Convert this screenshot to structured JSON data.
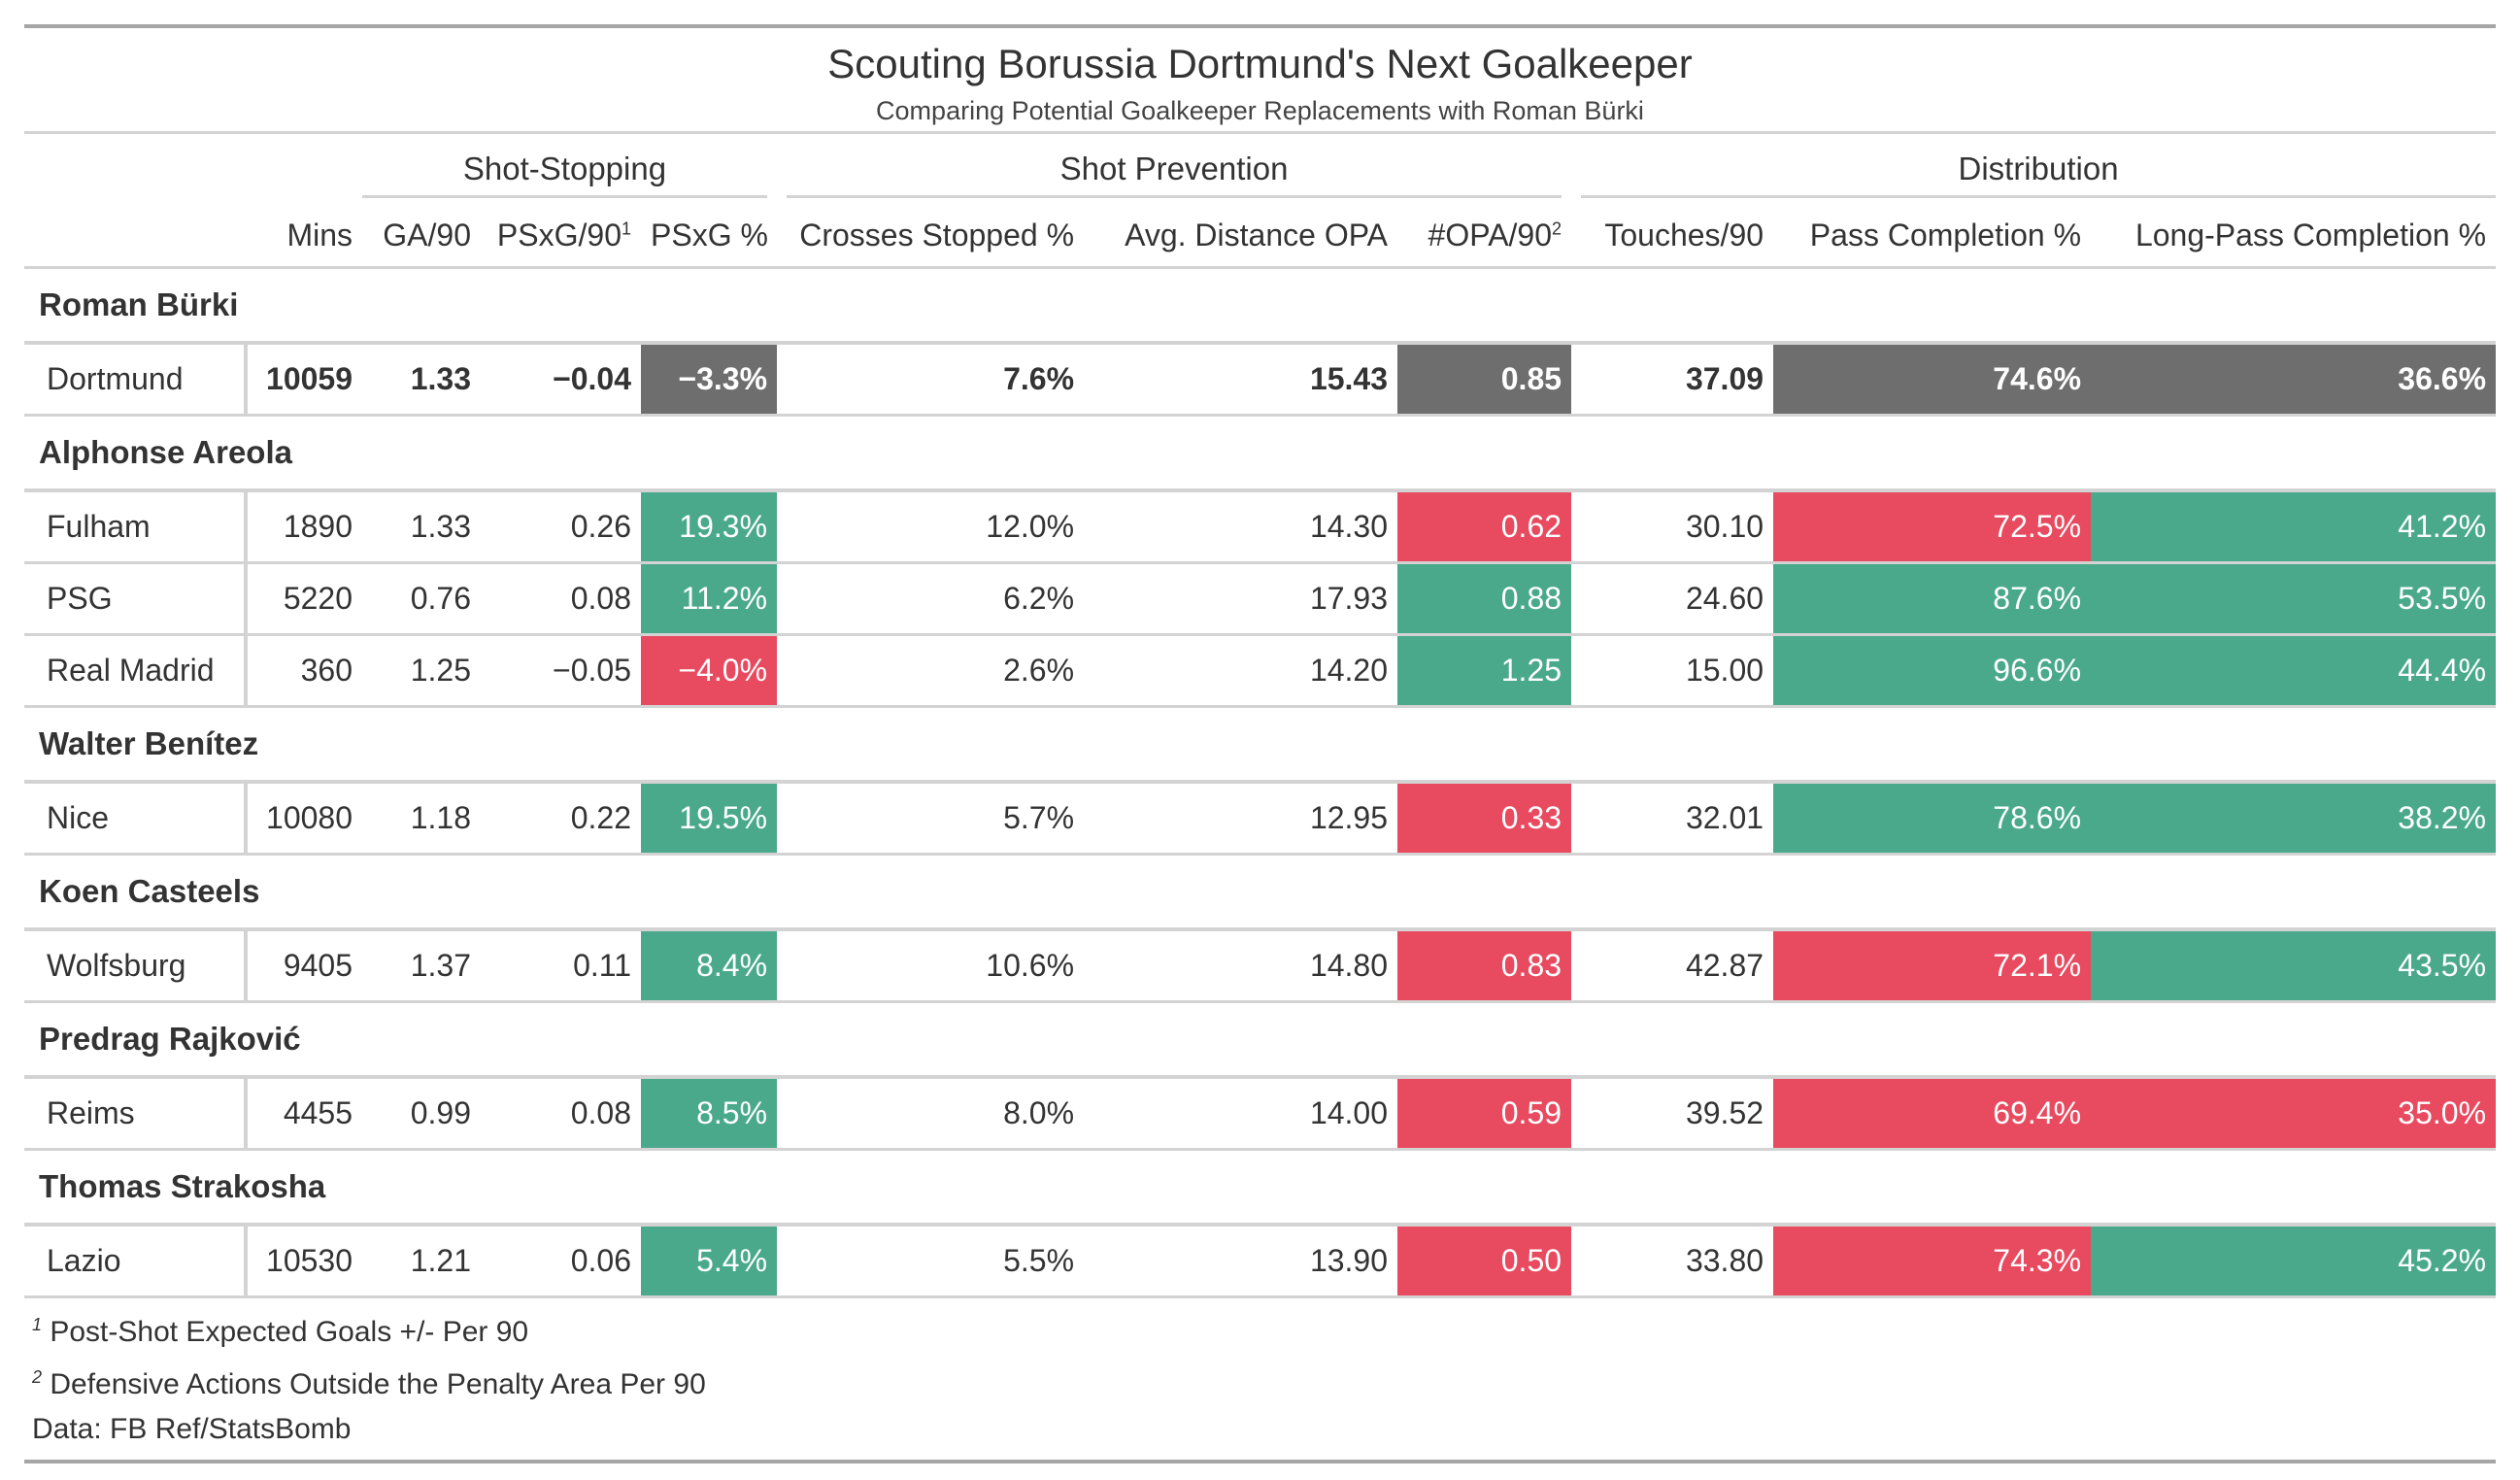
{
  "chart_data": {
    "type": "table",
    "title": "Scouting Borussia Dortmund's Next Goalkeeper",
    "subtitle": "Comparing Potential Goalkeeper Replacements with Roman Bürki",
    "spanners": [
      "Shot-Stopping",
      "Shot Prevention",
      "Distribution"
    ],
    "columns": [
      "Mins",
      "GA/90",
      "PSxG/90",
      "PSxG %",
      "Crosses Stopped %",
      "Avg. Distance OPA",
      "#OPA/90",
      "Touches/90",
      "Pass Completion %",
      "Long-Pass Completion %"
    ],
    "footnote_marks": {
      "PSxG/90": "1",
      "#OPA/90": "2"
    },
    "colors": {
      "better": "#4aa98b",
      "worse": "#e84a5f",
      "reference": "#6e6e6e"
    },
    "groups": [
      {
        "player": "Roman Bürki",
        "rows": [
          {
            "team": "Dortmund",
            "mins": "10059",
            "ga90": "1.33",
            "psxg90": "−0.04",
            "psxg_pct": "−3.3%",
            "crosses": "7.6%",
            "avg_dist": "15.43",
            "opa90": "0.85",
            "touches": "37.09",
            "pass_pct": "74.6%",
            "long_pct": "36.6%"
          }
        ]
      },
      {
        "player": "Alphonse Areola",
        "rows": [
          {
            "team": "Fulham",
            "mins": "1890",
            "ga90": "1.33",
            "psxg90": "0.26",
            "psxg_pct": "19.3%",
            "crosses": "12.0%",
            "avg_dist": "14.30",
            "opa90": "0.62",
            "touches": "30.10",
            "pass_pct": "72.5%",
            "long_pct": "41.2%"
          },
          {
            "team": "PSG",
            "mins": "5220",
            "ga90": "0.76",
            "psxg90": "0.08",
            "psxg_pct": "11.2%",
            "crosses": "6.2%",
            "avg_dist": "17.93",
            "opa90": "0.88",
            "touches": "24.60",
            "pass_pct": "87.6%",
            "long_pct": "53.5%"
          },
          {
            "team": "Real Madrid",
            "mins": "360",
            "ga90": "1.25",
            "psxg90": "−0.05",
            "psxg_pct": "−4.0%",
            "crosses": "2.6%",
            "avg_dist": "14.20",
            "opa90": "1.25",
            "touches": "15.00",
            "pass_pct": "96.6%",
            "long_pct": "44.4%"
          }
        ]
      },
      {
        "player": "Walter Benítez",
        "rows": [
          {
            "team": "Nice",
            "mins": "10080",
            "ga90": "1.18",
            "psxg90": "0.22",
            "psxg_pct": "19.5%",
            "crosses": "5.7%",
            "avg_dist": "12.95",
            "opa90": "0.33",
            "touches": "32.01",
            "pass_pct": "78.6%",
            "long_pct": "38.2%"
          }
        ]
      },
      {
        "player": "Koen Casteels",
        "rows": [
          {
            "team": "Wolfsburg",
            "mins": "9405",
            "ga90": "1.37",
            "psxg90": "0.11",
            "psxg_pct": "8.4%",
            "crosses": "10.6%",
            "avg_dist": "14.80",
            "opa90": "0.83",
            "touches": "42.87",
            "pass_pct": "72.1%",
            "long_pct": "43.5%"
          }
        ]
      },
      {
        "player": "Predrag Rajković",
        "rows": [
          {
            "team": "Reims",
            "mins": "4455",
            "ga90": "0.99",
            "psxg90": "0.08",
            "psxg_pct": "8.5%",
            "crosses": "8.0%",
            "avg_dist": "14.00",
            "opa90": "0.59",
            "touches": "39.52",
            "pass_pct": "69.4%",
            "long_pct": "35.0%"
          }
        ]
      },
      {
        "player": "Thomas Strakosha",
        "rows": [
          {
            "team": "Lazio",
            "mins": "10530",
            "ga90": "1.21",
            "psxg90": "0.06",
            "psxg_pct": "5.4%",
            "crosses": "5.5%",
            "avg_dist": "13.90",
            "opa90": "0.50",
            "touches": "33.80",
            "pass_pct": "74.3%",
            "long_pct": "45.2%"
          }
        ]
      }
    ],
    "footnotes": [
      {
        "mark": "1",
        "text": "Post-Shot Expected Goals +/- Per 90"
      },
      {
        "mark": "2",
        "text": "Defensive Actions Outside the Penalty Area Per 90"
      }
    ],
    "source": "Data: FB Ref/StatsBomb"
  }
}
